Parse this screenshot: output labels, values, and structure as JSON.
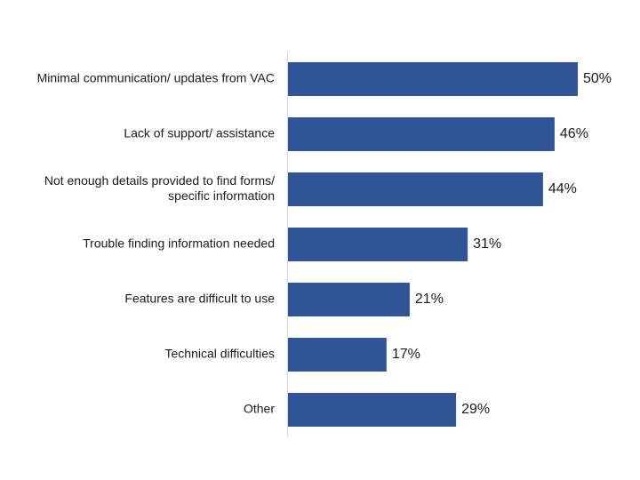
{
  "chart_data": {
    "type": "bar",
    "orientation": "horizontal",
    "categories": [
      [
        "Minimal communication/ updates from VAC"
      ],
      [
        "Lack of support/ assistance"
      ],
      [
        "Not enough details provided to find forms/",
        "specific information"
      ],
      [
        "Trouble finding information needed"
      ],
      [
        "Features are difficult to use"
      ],
      [
        "Technical difficulties"
      ],
      [
        "Other"
      ]
    ],
    "values": [
      50,
      46,
      44,
      31,
      21,
      17,
      29
    ],
    "value_labels": [
      "50%",
      "46%",
      "44%",
      "31%",
      "21%",
      "17%",
      "29%"
    ],
    "unit": "%",
    "xlim": [
      0,
      50
    ],
    "bar_color": "#2f5597",
    "grid": false,
    "legend": "none"
  }
}
